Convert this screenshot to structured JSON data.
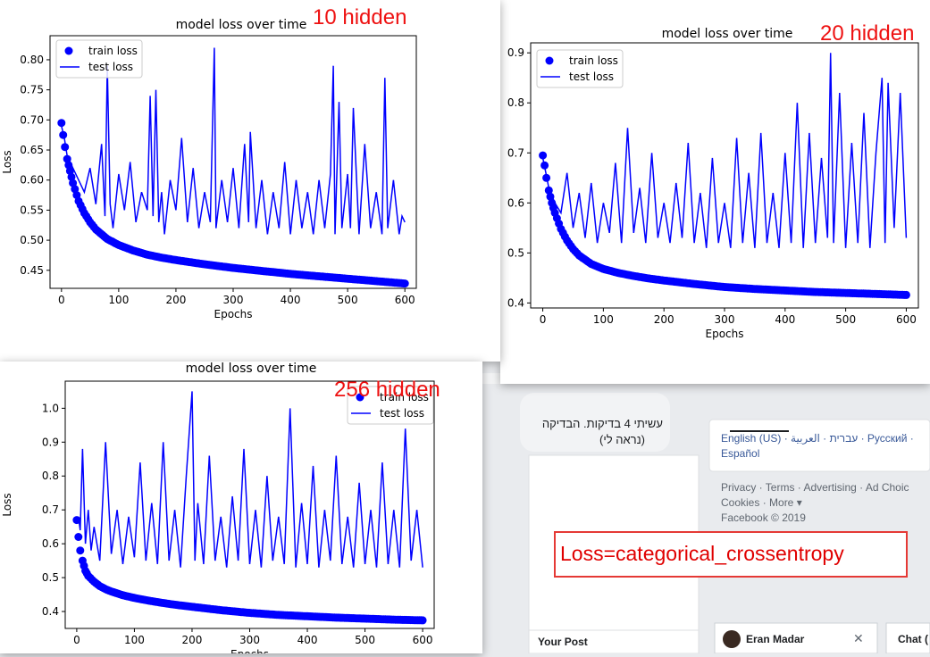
{
  "annotations": {
    "hidden10": "10 hidden",
    "hidden20": "20 hidden",
    "hidden256": "256 hidden",
    "loss_note": "Loss=categorical_crossentropy"
  },
  "facebook": {
    "post_text_line1": "עשיתי 4 בדיקות. הבדיקה",
    "post_text_line2": "(נראה לי)",
    "languages_line1": "English (US) · עברית · العربية · Русский ·",
    "languages_line2": "Español",
    "footer_line1": "Privacy · Terms · Advertising · Ad Choic",
    "footer_line2": "Cookies · More ▾",
    "footer_line3": "Facebook © 2019",
    "your_post": "Your Post",
    "chat_user": "Eran Madar",
    "chat_tab": "Chat (",
    "close_symbol": "✕"
  },
  "chart_data": [
    {
      "type": "line",
      "title": "model loss over time",
      "xlabel": "Epochs",
      "ylabel": "Loss",
      "xlim": [
        -20,
        620
      ],
      "ylim": [
        0.42,
        0.84
      ],
      "xticks": [
        0,
        100,
        200,
        300,
        400,
        500,
        600
      ],
      "yticks": [
        0.45,
        0.5,
        0.55,
        0.6,
        0.65,
        0.7,
        0.75,
        0.8
      ],
      "legend": "top-left",
      "color": "#0000ff",
      "series": [
        {
          "name": "train loss",
          "style": "markers",
          "x": [
            0,
            3,
            6,
            10,
            15,
            20,
            30,
            40,
            50,
            60,
            80,
            100,
            125,
            150,
            175,
            200,
            250,
            300,
            350,
            400,
            450,
            500,
            550,
            600
          ],
          "values": [
            0.695,
            0.675,
            0.655,
            0.635,
            0.615,
            0.595,
            0.565,
            0.545,
            0.53,
            0.518,
            0.502,
            0.492,
            0.483,
            0.476,
            0.471,
            0.467,
            0.46,
            0.454,
            0.449,
            0.444,
            0.44,
            0.436,
            0.432,
            0.428
          ]
        },
        {
          "name": "test loss",
          "style": "line",
          "x": [
            0,
            5,
            10,
            20,
            30,
            40,
            50,
            60,
            70,
            76,
            80,
            85,
            90,
            100,
            110,
            120,
            130,
            140,
            150,
            155,
            160,
            165,
            170,
            175,
            180,
            190,
            200,
            210,
            220,
            230,
            240,
            250,
            260,
            267,
            270,
            280,
            290,
            300,
            310,
            320,
            327,
            330,
            340,
            350,
            360,
            370,
            380,
            390,
            400,
            410,
            420,
            430,
            440,
            450,
            460,
            470,
            475,
            478,
            485,
            490,
            500,
            505,
            510,
            520,
            530,
            540,
            550,
            560,
            565,
            570,
            580,
            590,
            595,
            600
          ],
          "values": [
            0.69,
            0.67,
            0.64,
            0.62,
            0.6,
            0.58,
            0.62,
            0.56,
            0.66,
            0.54,
            0.79,
            0.56,
            0.52,
            0.61,
            0.55,
            0.63,
            0.53,
            0.58,
            0.55,
            0.74,
            0.54,
            0.75,
            0.53,
            0.58,
            0.51,
            0.6,
            0.55,
            0.67,
            0.53,
            0.62,
            0.52,
            0.58,
            0.53,
            0.82,
            0.52,
            0.6,
            0.53,
            0.62,
            0.52,
            0.66,
            0.53,
            0.68,
            0.52,
            0.6,
            0.51,
            0.58,
            0.52,
            0.63,
            0.51,
            0.6,
            0.52,
            0.58,
            0.51,
            0.6,
            0.52,
            0.61,
            0.79,
            0.51,
            0.73,
            0.52,
            0.61,
            0.52,
            0.72,
            0.51,
            0.66,
            0.52,
            0.58,
            0.51,
            0.77,
            0.52,
            0.6,
            0.51,
            0.54,
            0.53
          ]
        }
      ]
    },
    {
      "type": "line",
      "title": "model loss over time",
      "xlabel": "Epochs",
      "ylabel": "",
      "xlim": [
        -20,
        620
      ],
      "ylim": [
        0.39,
        0.92
      ],
      "xticks": [
        0,
        100,
        200,
        300,
        400,
        500,
        600
      ],
      "yticks": [
        0.4,
        0.5,
        0.6,
        0.7,
        0.8,
        0.9
      ],
      "legend": "top-left",
      "color": "#0000ff",
      "series": [
        {
          "name": "train loss",
          "style": "markers",
          "x": [
            0,
            3,
            6,
            10,
            15,
            20,
            30,
            40,
            50,
            60,
            80,
            100,
            125,
            150,
            175,
            200,
            250,
            300,
            350,
            400,
            450,
            500,
            550,
            600
          ],
          "values": [
            0.695,
            0.675,
            0.65,
            0.625,
            0.6,
            0.58,
            0.548,
            0.525,
            0.508,
            0.495,
            0.478,
            0.468,
            0.46,
            0.454,
            0.449,
            0.445,
            0.438,
            0.432,
            0.428,
            0.425,
            0.422,
            0.42,
            0.418,
            0.416
          ]
        },
        {
          "name": "test loss",
          "style": "line",
          "x": [
            0,
            5,
            10,
            20,
            30,
            40,
            50,
            60,
            70,
            80,
            90,
            100,
            110,
            120,
            130,
            140,
            150,
            160,
            170,
            180,
            190,
            200,
            210,
            220,
            230,
            240,
            250,
            260,
            270,
            280,
            290,
            300,
            310,
            320,
            330,
            340,
            350,
            360,
            370,
            380,
            390,
            400,
            410,
            420,
            430,
            440,
            450,
            460,
            470,
            475,
            480,
            490,
            500,
            510,
            520,
            530,
            540,
            550,
            560,
            565,
            570,
            580,
            590,
            600
          ],
          "values": [
            0.69,
            0.66,
            0.63,
            0.6,
            0.58,
            0.66,
            0.55,
            0.62,
            0.53,
            0.64,
            0.52,
            0.6,
            0.54,
            0.68,
            0.52,
            0.75,
            0.54,
            0.63,
            0.52,
            0.7,
            0.53,
            0.6,
            0.52,
            0.64,
            0.53,
            0.72,
            0.52,
            0.62,
            0.51,
            0.69,
            0.52,
            0.6,
            0.51,
            0.73,
            0.52,
            0.66,
            0.51,
            0.74,
            0.52,
            0.62,
            0.51,
            0.7,
            0.52,
            0.8,
            0.51,
            0.74,
            0.52,
            0.69,
            0.53,
            0.9,
            0.52,
            0.82,
            0.51,
            0.72,
            0.52,
            0.78,
            0.51,
            0.7,
            0.85,
            0.52,
            0.84,
            0.55,
            0.82,
            0.53
          ]
        }
      ]
    },
    {
      "type": "line",
      "title": "model loss over time",
      "xlabel": "Epochs",
      "ylabel": "Loss",
      "xlim": [
        -20,
        620
      ],
      "ylim": [
        0.35,
        1.08
      ],
      "xticks": [
        0,
        100,
        200,
        300,
        400,
        500,
        600
      ],
      "yticks": [
        0.4,
        0.5,
        0.6,
        0.7,
        0.8,
        0.9,
        1.0
      ],
      "legend": "top-right",
      "color": "#0000ff",
      "series": [
        {
          "name": "train loss",
          "style": "markers",
          "x": [
            0,
            3,
            6,
            10,
            15,
            20,
            30,
            40,
            50,
            60,
            80,
            100,
            125,
            150,
            175,
            200,
            250,
            300,
            350,
            400,
            450,
            500,
            550,
            600
          ],
          "values": [
            0.67,
            0.62,
            0.58,
            0.55,
            0.52,
            0.505,
            0.488,
            0.475,
            0.466,
            0.459,
            0.448,
            0.44,
            0.432,
            0.425,
            0.419,
            0.414,
            0.404,
            0.396,
            0.39,
            0.386,
            0.382,
            0.379,
            0.376,
            0.374
          ]
        },
        {
          "name": "test loss",
          "style": "line",
          "x": [
            0,
            3,
            6,
            10,
            15,
            20,
            25,
            30,
            40,
            50,
            60,
            70,
            80,
            90,
            100,
            110,
            120,
            130,
            140,
            150,
            160,
            170,
            180,
            190,
            200,
            205,
            210,
            220,
            230,
            240,
            250,
            260,
            270,
            280,
            290,
            300,
            310,
            320,
            330,
            340,
            350,
            360,
            370,
            380,
            390,
            400,
            410,
            420,
            430,
            440,
            450,
            460,
            470,
            480,
            490,
            500,
            510,
            520,
            530,
            540,
            550,
            560,
            570,
            580,
            590,
            600
          ],
          "values": [
            0.66,
            0.68,
            0.64,
            0.88,
            0.6,
            0.7,
            0.58,
            0.65,
            0.55,
            0.9,
            0.57,
            0.7,
            0.54,
            0.68,
            0.56,
            0.84,
            0.55,
            0.72,
            0.54,
            0.9,
            0.55,
            0.7,
            0.53,
            0.8,
            1.05,
            0.55,
            0.72,
            0.54,
            0.86,
            0.55,
            0.68,
            0.53,
            0.74,
            0.55,
            0.88,
            0.54,
            0.7,
            0.53,
            0.8,
            0.55,
            0.68,
            0.54,
            1.0,
            0.53,
            0.72,
            0.54,
            0.83,
            0.53,
            0.7,
            0.55,
            0.86,
            0.54,
            0.68,
            0.53,
            0.78,
            0.54,
            0.7,
            0.53,
            0.84,
            0.54,
            0.7,
            0.53,
            0.94,
            0.55,
            0.7,
            0.53
          ]
        }
      ]
    }
  ]
}
